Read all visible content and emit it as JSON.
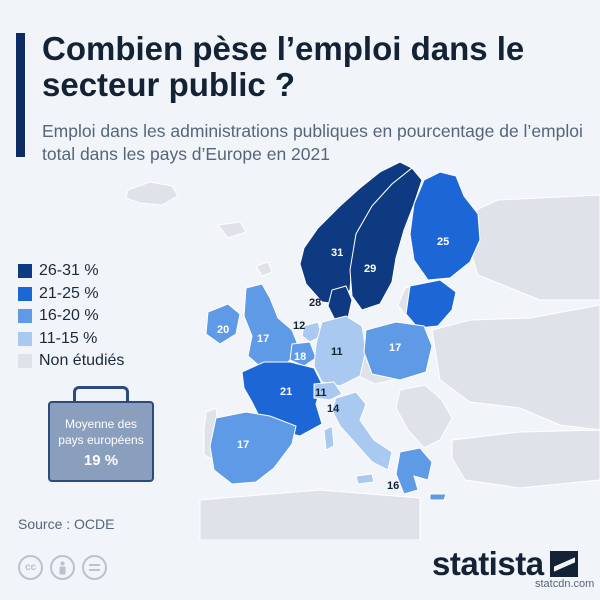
{
  "title": "Combien pèse l’emploi dans le secteur public ?",
  "subtitle": "Emploi dans les administrations publiques en pourcentage de l’emploi total dans les pays d’Europe en 2021",
  "colors": {
    "c26_31": "#0d3a80",
    "c21_25": "#1d66d6",
    "c16_20": "#5e9ae6",
    "c11_15": "#a9c9f1",
    "not_studied": "#dfe3e9",
    "background": "#f1f4f8",
    "accent": "#0d2b63"
  },
  "legend": [
    {
      "label": "26-31 %",
      "color": "#0d3a80"
    },
    {
      "label": "21-25 %",
      "color": "#1d66d6"
    },
    {
      "label": "16-20 %",
      "color": "#5e9ae6"
    },
    {
      "label": "11-15 %",
      "color": "#a9c9f1"
    },
    {
      "label": "Non étudiés",
      "color": "#dfe3e9"
    }
  ],
  "map_values": {
    "norway": "31",
    "sweden": "29",
    "finland": "25",
    "denmark": "28",
    "netherlands": "12",
    "ireland": "20",
    "united_kingdom": "17",
    "belgium": "18",
    "germany": "11",
    "poland": "17",
    "france": "21",
    "switzerland": "11",
    "italy": "14",
    "spain": "17",
    "greece": "16"
  },
  "average": {
    "label": "Moyenne des pays européens",
    "value": "19 %"
  },
  "source": "Source : OCDE",
  "license_icons": [
    "cc-icon",
    "by-icon",
    "equals-icon"
  ],
  "brand": "statista",
  "watermark": "statcdn.com"
}
